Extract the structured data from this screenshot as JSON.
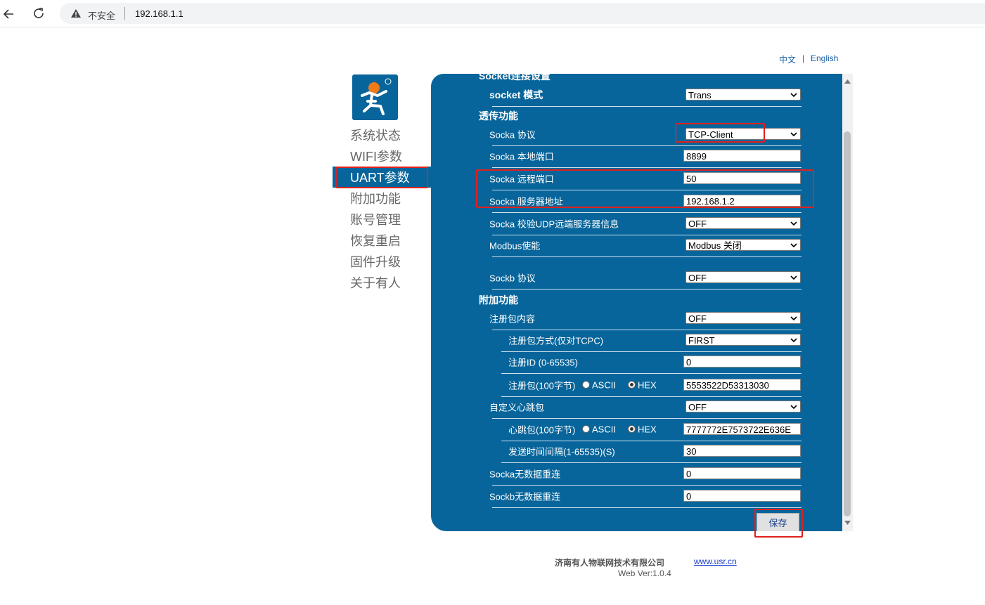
{
  "browser": {
    "security": "不安全",
    "url": "192.168.1.1"
  },
  "language": {
    "zh": "中文",
    "separator": "|",
    "en": "English"
  },
  "nav": [
    {
      "label": "系统状态"
    },
    {
      "label": "WIFI参数"
    },
    {
      "label": "UART参数",
      "active": true
    },
    {
      "label": "附加功能"
    },
    {
      "label": "账号管理"
    },
    {
      "label": "恢复重启"
    },
    {
      "label": "固件升级"
    },
    {
      "label": "关于有人"
    }
  ],
  "form": {
    "sections": [
      {
        "title": "Socket连接设置",
        "rows": [
          {
            "label": "socket 模式",
            "bold": true,
            "select": "Trans"
          }
        ]
      },
      {
        "title": "透传功能",
        "rows": [
          {
            "label": "Socka 协议",
            "select": "TCP-Client"
          },
          {
            "label": "Socka 本地端口",
            "input": "8899"
          },
          {
            "label": "Socka 远程端口",
            "input": "50"
          },
          {
            "label": "Socka 服务器地址",
            "input": "192.168.1.2"
          },
          {
            "label": "Socka 校验UDP远端服务器信息",
            "select": "OFF"
          },
          {
            "label": "Modbus使能",
            "select": "Modbus 关闭"
          },
          {
            "label": "Sockb 协议",
            "select": "OFF"
          }
        ]
      },
      {
        "title": "附加功能",
        "rows": [
          {
            "label": "注册包内容",
            "select": "OFF",
            "children": [
              {
                "label": "注册包方式(仅对TCPC)",
                "select": "FIRST"
              },
              {
                "label": "注册ID (0-65535)",
                "input": "0"
              },
              {
                "label": "注册包(100字节)",
                "radio": [
                  {
                    "label": "ASCII",
                    "checked": false
                  },
                  {
                    "label": "HEX",
                    "checked": true
                  }
                ],
                "input": "5553522D53313030"
              }
            ]
          },
          {
            "label": "自定义心跳包",
            "select": "OFF",
            "children": [
              {
                "label": "心跳包(100字节)",
                "radio": [
                  {
                    "label": "ASCII",
                    "checked": false
                  },
                  {
                    "label": "HEX",
                    "checked": true
                  }
                ],
                "input": "7777772E7573722E636E"
              },
              {
                "label": "发送时间间隔(1-65535)(S)",
                "input": "30"
              }
            ]
          },
          {
            "label": "Socka无数据重连",
            "input": "0"
          },
          {
            "label": "Sockb无数据重连",
            "input": "0"
          }
        ]
      }
    ],
    "button": "保存"
  },
  "footer": {
    "company": "济南有人物联网技术有限公司",
    "link": "www.usr.cn",
    "version": "Web Ver:1.0.4"
  }
}
